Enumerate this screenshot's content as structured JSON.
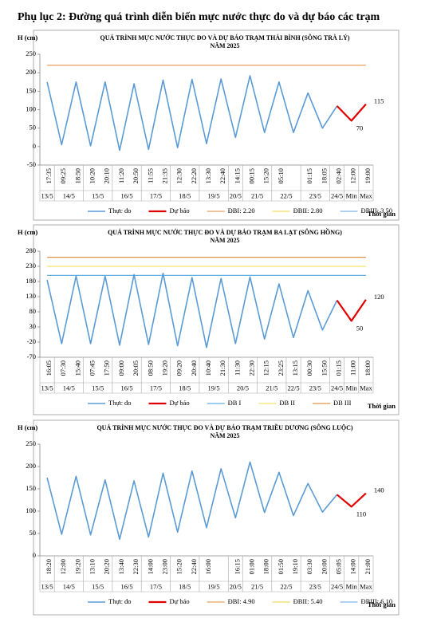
{
  "heading": "Phụ lục 2: Đường quá trình diễn biến mực nước thực đo và dự báo các trạm",
  "chart_data": [
    {
      "type": "line",
      "title": "QUÁ TRÌNH MỰC NƯỚC THỰC ĐO VÀ DỰ BÁO TRẠM THÁI BÌNH (SÔNG TRÀ LÝ)",
      "subtitle": "NĂM 2025",
      "y_label": "H (cm)",
      "x_label": "Thời gian",
      "categories": [
        "17:35",
        "09:25",
        "18:50",
        "10:20",
        "20:10",
        "11:20",
        "20:50",
        "11:55",
        "21:35",
        "12:30",
        "22:20",
        "13:30",
        "22:40",
        "14:15",
        "00:15",
        "15:20",
        "05:10",
        null,
        "01:15",
        "18:05",
        "02:40",
        "12:00",
        "19:00"
      ],
      "dates": [
        "13/5",
        "14/5",
        null,
        "15/5",
        null,
        "16/5",
        null,
        "17/5",
        null,
        "18/5",
        null,
        "19/5",
        null,
        "20/5",
        "21/5",
        null,
        "22/5",
        null,
        "23/5",
        null,
        "24/5",
        "Min",
        "Max"
      ],
      "series": [
        {
          "name": "Thực đo",
          "color": "#5b9bd5",
          "values": [
            175,
            5,
            175,
            2,
            175,
            -10,
            170,
            -8,
            180,
            -3,
            182,
            8,
            183,
            25,
            192,
            38,
            175,
            38,
            145,
            50,
            110,
            null,
            null
          ]
        },
        {
          "name": "Dự báo",
          "color": "#e00000",
          "values": [
            null,
            null,
            null,
            null,
            null,
            null,
            null,
            null,
            null,
            null,
            null,
            null,
            null,
            null,
            null,
            null,
            null,
            null,
            null,
            null,
            110,
            70,
            115
          ],
          "value_labels": [
            null,
            null,
            null,
            null,
            null,
            null,
            null,
            null,
            null,
            null,
            null,
            null,
            null,
            null,
            null,
            null,
            null,
            null,
            null,
            null,
            null,
            "70",
            "115"
          ]
        }
      ],
      "thresholds": [
        {
          "name": "ĐBI: 2.20",
          "color": "#e8a060",
          "value": 220
        },
        {
          "name": "ĐBII: 2.80",
          "color": "#f0dc60",
          "value": 280
        },
        {
          "name": "ĐBIII: 3.50",
          "color": "#7fb8e8",
          "value": 350
        }
      ],
      "ylim": [
        -50,
        250
      ],
      "yticks": [
        -50,
        0,
        50,
        100,
        150,
        200,
        250
      ],
      "grid": false
    },
    {
      "type": "line",
      "title": "QUÁ TRÌNH MỰC NƯỚC THỰC ĐO VÀ DỰ BÁO TRẠM BA LẠT (SÔNG HỒNG)",
      "subtitle": "NĂM 2025",
      "y_label": "H (cm)",
      "x_label": "Thời gian",
      "categories": [
        "16:05",
        "07:30",
        "15:40",
        "07:45",
        "17:50",
        "09:00",
        "20:05",
        "08:50",
        "19:20",
        "09:20",
        "20:40",
        "10:40",
        "21:30",
        "11:30",
        "22:30",
        "12:15",
        "23:25",
        "13:15",
        "00:30",
        "15:50",
        "01:15",
        "11:00",
        "18:00"
      ],
      "dates": [
        "13/5",
        "14/5",
        null,
        "15/5",
        null,
        "16/5",
        null,
        "17/5",
        null,
        "18/5",
        null,
        "19/5",
        null,
        "20/5",
        null,
        "21/5",
        null,
        "22/5",
        "23/5",
        null,
        "24/5",
        "Min",
        "Max"
      ],
      "series": [
        {
          "name": "Thực đo",
          "color": "#5b9bd5",
          "values": [
            185,
            -25,
            198,
            -25,
            198,
            -30,
            203,
            -28,
            207,
            -32,
            193,
            -38,
            190,
            -25,
            195,
            -10,
            172,
            -5,
            150,
            20,
            118,
            null,
            null
          ]
        },
        {
          "name": "Dự báo",
          "color": "#e00000",
          "values": [
            null,
            null,
            null,
            null,
            null,
            null,
            null,
            null,
            null,
            null,
            null,
            null,
            null,
            null,
            null,
            null,
            null,
            null,
            null,
            null,
            118,
            50,
            120
          ],
          "value_labels": [
            null,
            null,
            null,
            null,
            null,
            null,
            null,
            null,
            null,
            null,
            null,
            null,
            null,
            null,
            null,
            null,
            null,
            null,
            null,
            null,
            null,
            "50",
            "120"
          ]
        }
      ],
      "thresholds": [
        {
          "name": "ĐB I",
          "color": "#5fb0e0",
          "value": 200
        },
        {
          "name": "ĐB II",
          "color": "#f2e46a",
          "value": 230
        },
        {
          "name": "ĐB III",
          "color": "#e0924a",
          "value": 260
        }
      ],
      "ylim": [
        -70,
        280
      ],
      "yticks": [
        -70,
        -20,
        30,
        80,
        130,
        180,
        230,
        280
      ],
      "grid": false
    },
    {
      "type": "line",
      "title": "QUÁ TRÌNH MỰC NƯỚC THỰC ĐO VÀ DỰ BÁO TRẠM TRIỀU DƯƠNG (SÔNG LUỘC)",
      "subtitle": "NĂM 2025",
      "y_label": "H (cm)",
      "x_label": "Thời gian",
      "categories": [
        "18:20",
        "12:00",
        "19:20",
        "13:10",
        "20:20",
        "13:40",
        "22:30",
        "14:00",
        "23:00",
        "15:20",
        "22:40",
        "16:00",
        null,
        "16:15",
        "01:00",
        "18:00",
        "01:50",
        "19:10",
        "03:30",
        "20:00",
        "05:05",
        "14:00",
        "21:00"
      ],
      "dates": [
        "13/5",
        "14/5",
        null,
        "15/5",
        null,
        "16/5",
        null,
        "17/5",
        null,
        "18/5",
        null,
        "19/5",
        null,
        "20/5",
        "21/5",
        null,
        "22/5",
        null,
        "23/5",
        null,
        "24/5",
        "Min",
        "Max"
      ],
      "series": [
        {
          "name": "Thực đo",
          "color": "#5b9bd5",
          "values": [
            175,
            48,
            178,
            47,
            170,
            37,
            168,
            42,
            185,
            53,
            190,
            63,
            195,
            85,
            210,
            97,
            187,
            90,
            162,
            98,
            137,
            null,
            null
          ]
        },
        {
          "name": "Dự báo",
          "color": "#e00000",
          "values": [
            null,
            null,
            null,
            null,
            null,
            null,
            null,
            null,
            null,
            null,
            null,
            null,
            null,
            null,
            null,
            null,
            null,
            null,
            null,
            null,
            137,
            110,
            140
          ],
          "value_labels": [
            null,
            null,
            null,
            null,
            null,
            null,
            null,
            null,
            null,
            null,
            null,
            null,
            null,
            null,
            null,
            null,
            null,
            null,
            null,
            null,
            null,
            "110",
            "140"
          ]
        }
      ],
      "thresholds": [
        {
          "name": "ĐBI: 4.90",
          "color": "#e8a060",
          "value": 490
        },
        {
          "name": "ĐBII: 5.40",
          "color": "#f0dc60",
          "value": 540
        },
        {
          "name": "ĐBIII: 6.10",
          "color": "#7fb8e8",
          "value": 610
        }
      ],
      "ylim": [
        0,
        250
      ],
      "yticks": [
        0,
        50,
        100,
        150,
        200,
        250
      ],
      "grid": false
    }
  ]
}
